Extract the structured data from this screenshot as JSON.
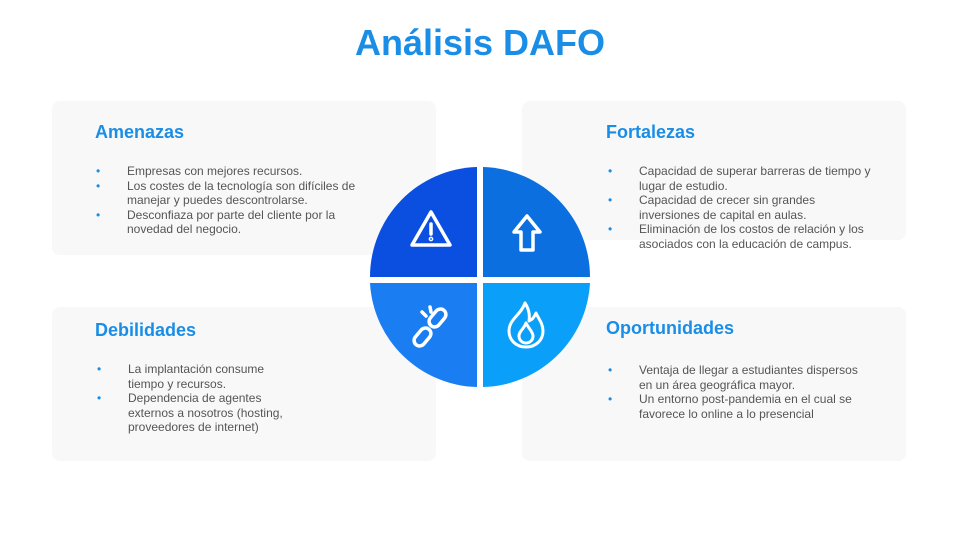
{
  "title": "Análisis DAFO",
  "colors": {
    "accent": "#1a8ee6",
    "quadrant_top_left": "#0a4fe0",
    "quadrant_top_right": "#0b6fe0",
    "quadrant_bottom_left": "#1a7ef2",
    "quadrant_bottom_right": "#0aa0fa",
    "card_background": "#f8f8f8"
  },
  "quadrants": {
    "amenazas": {
      "title": "Amenazas",
      "icon": "warning-triangle-icon",
      "items": [
        "Empresas con mejores recursos.",
        "Los costes de la tecnología son difíciles de manejar y puedes descontrolarse.",
        "Desconfiaza por parte del cliente por la novedad del negocio."
      ]
    },
    "fortalezas": {
      "title": "Fortalezas",
      "icon": "arrow-up-icon",
      "items": [
        "Capacidad de superar barreras de tiempo y lugar de estudio.",
        "Capacidad de crecer sin grandes inversiones de capital en aulas.",
        "Eliminación de los costos de relación y los asociados con la educación de campus."
      ]
    },
    "debilidades": {
      "title": "Debilidades",
      "icon": "broken-link-icon",
      "items": [
        "La implantación consume tiempo y recursos.",
        "Dependencia de agentes externos a nosotros (hosting, proveedores de internet)"
      ]
    },
    "oportunidades": {
      "title": "Oportunidades",
      "icon": "flame-icon",
      "items": [
        "Ventaja de llegar a estudiantes dispersos en un área geográfica mayor.",
        "Un entorno post-pandemia en el cual se favorece lo online a lo presencial"
      ]
    }
  }
}
